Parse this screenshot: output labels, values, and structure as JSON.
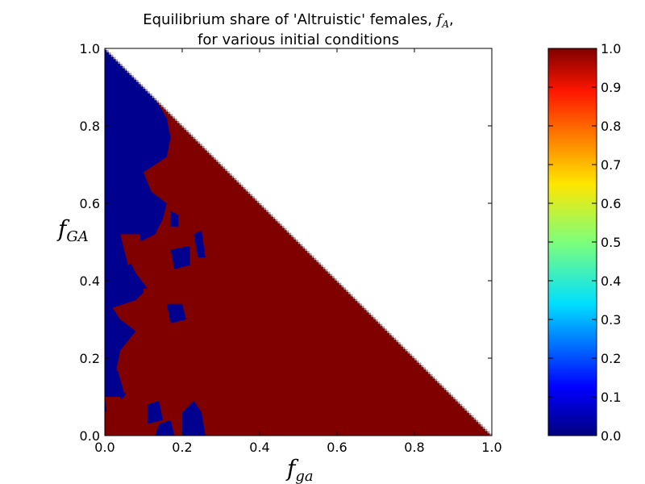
{
  "chart_data": {
    "type": "heatmap",
    "title": {
      "line1_prefix": "Equilibrium share of 'Altruistic' females, ",
      "line1_symbol": "f",
      "line1_sub": "A",
      "line1_suffix": ",",
      "line2": "for various initial conditions"
    },
    "xlabel": {
      "symbol": "f",
      "sub": "ga"
    },
    "ylabel": {
      "symbol": "f",
      "sub": "GA"
    },
    "xlim": [
      0.0,
      1.0
    ],
    "ylim": [
      0.0,
      1.0
    ],
    "xticks": [
      "0.0",
      "0.2",
      "0.4",
      "0.6",
      "0.8",
      "1.0"
    ],
    "yticks": [
      "0.0",
      "0.2",
      "0.4",
      "0.6",
      "0.8",
      "1.0"
    ],
    "domain": "f_ga + f_GA <= 1",
    "region_description": "Upper-right of diagonal is undefined (white). Left region near f_ga=0 converges to 0.0 (blue), remainder converges to 1.0 (red).",
    "boundary": [
      [
        0.0,
        1.0
      ],
      [
        0.13,
        0.87
      ],
      [
        0.16,
        0.82
      ],
      [
        0.17,
        0.77
      ],
      [
        0.16,
        0.72
      ],
      [
        0.13,
        0.7
      ],
      [
        0.1,
        0.68
      ],
      [
        0.12,
        0.63
      ],
      [
        0.16,
        0.6
      ],
      [
        0.15,
        0.56
      ],
      [
        0.13,
        0.52
      ],
      [
        0.09,
        0.5
      ],
      [
        0.06,
        0.46
      ],
      [
        0.08,
        0.42
      ],
      [
        0.11,
        0.38
      ],
      [
        0.08,
        0.35
      ],
      [
        0.02,
        0.33
      ],
      [
        0.04,
        0.3
      ],
      [
        0.08,
        0.27
      ],
      [
        0.04,
        0.22
      ],
      [
        0.03,
        0.17
      ],
      [
        0.07,
        0.14
      ],
      [
        0.05,
        0.1
      ],
      [
        0.01,
        0.07
      ],
      [
        0.0,
        0.06
      ]
    ],
    "red_patches": [
      [
        [
          0.1,
          0.38
        ],
        [
          0.2,
          0.38
        ],
        [
          0.22,
          0.3
        ],
        [
          0.25,
          0.25
        ],
        [
          0.24,
          0.2
        ],
        [
          0.19,
          0.14
        ],
        [
          0.16,
          0.18
        ],
        [
          0.12,
          0.26
        ],
        [
          0.1,
          0.33
        ]
      ],
      [
        [
          0.04,
          0.52
        ],
        [
          0.09,
          0.52
        ],
        [
          0.1,
          0.46
        ],
        [
          0.06,
          0.44
        ]
      ],
      [
        [
          0.03,
          0.18
        ],
        [
          0.08,
          0.18
        ],
        [
          0.09,
          0.12
        ],
        [
          0.05,
          0.11
        ]
      ],
      [
        [
          0.0,
          0.1
        ],
        [
          0.04,
          0.1
        ],
        [
          0.05,
          0.03
        ],
        [
          0.01,
          0.02
        ]
      ]
    ],
    "blue_patches": [
      [
        [
          0.16,
          0.34
        ],
        [
          0.2,
          0.34
        ],
        [
          0.21,
          0.3
        ],
        [
          0.17,
          0.29
        ]
      ],
      [
        [
          0.17,
          0.48
        ],
        [
          0.22,
          0.49
        ],
        [
          0.22,
          0.44
        ],
        [
          0.18,
          0.43
        ]
      ],
      [
        [
          0.23,
          0.52
        ],
        [
          0.25,
          0.53
        ],
        [
          0.26,
          0.46
        ],
        [
          0.24,
          0.46
        ]
      ],
      [
        [
          0.11,
          0.08
        ],
        [
          0.14,
          0.09
        ],
        [
          0.15,
          0.04
        ],
        [
          0.11,
          0.03
        ]
      ],
      [
        [
          0.17,
          0.58
        ],
        [
          0.19,
          0.57
        ],
        [
          0.19,
          0.54
        ],
        [
          0.17,
          0.54
        ]
      ],
      [
        [
          0.2,
          0.0
        ],
        [
          0.26,
          0.0
        ],
        [
          0.25,
          0.06
        ],
        [
          0.23,
          0.09
        ],
        [
          0.2,
          0.06
        ]
      ],
      [
        [
          0.13,
          0.0
        ],
        [
          0.18,
          0.0
        ],
        [
          0.17,
          0.04
        ],
        [
          0.14,
          0.03
        ]
      ]
    ],
    "colorbar": {
      "colormap": "jet",
      "min": 0.0,
      "max": 1.0,
      "ticks": [
        "0.0",
        "0.1",
        "0.2",
        "0.3",
        "0.4",
        "0.5",
        "0.6",
        "0.7",
        "0.8",
        "0.9",
        "1.0"
      ]
    },
    "colors": {
      "low": "#00008f",
      "high": "#800000",
      "frame": "#000000",
      "undefined": "#ffffff"
    }
  }
}
